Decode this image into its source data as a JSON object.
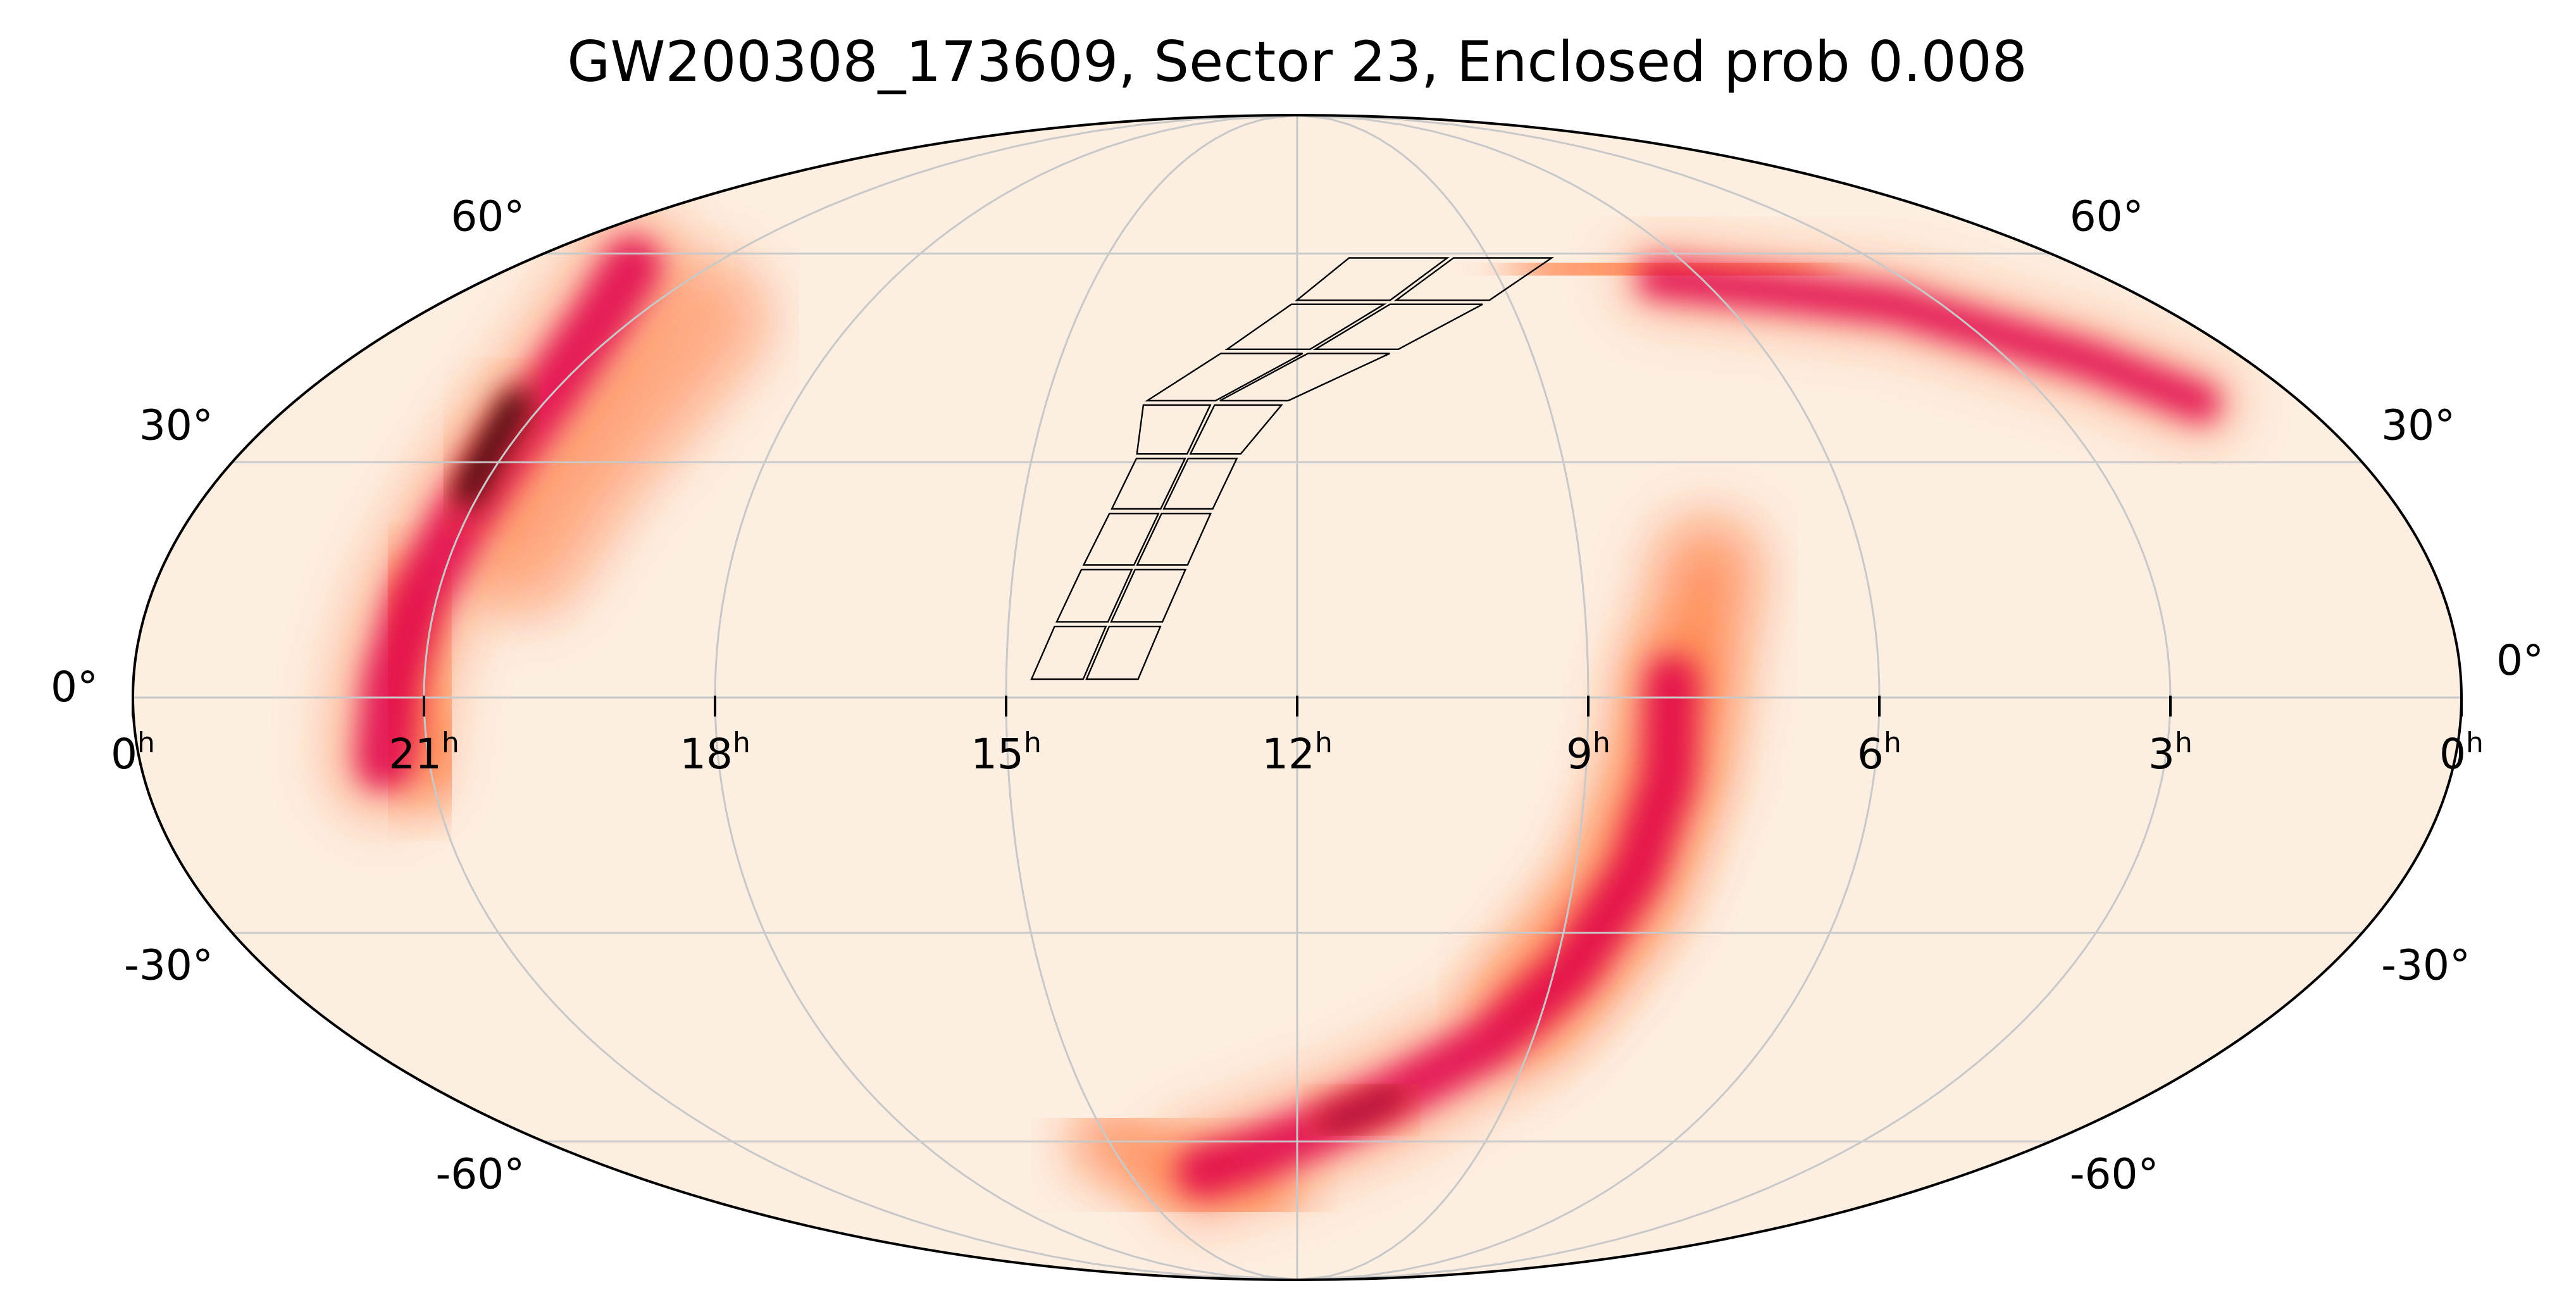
{
  "chart_data": {
    "type": "heatmap",
    "projection": "mollweide",
    "title": "GW200308_173609, Sector 23, Enclosed prob 0.008",
    "colormap": {
      "name": "RdPu-like",
      "low": "#fdeee2",
      "mid": "#ff6a2c",
      "high": "#e0004a",
      "peak": "#2a0000"
    },
    "grid": true,
    "grid_color": "#c8c8c8",
    "ra_ticks": [
      {
        "hours": "0",
        "unit": "h",
        "ra_deg": 360
      },
      {
        "hours": "21",
        "unit": "h",
        "ra_deg": 315
      },
      {
        "hours": "18",
        "unit": "h",
        "ra_deg": 270
      },
      {
        "hours": "15",
        "unit": "h",
        "ra_deg": 225
      },
      {
        "hours": "12",
        "unit": "h",
        "ra_deg": 180
      },
      {
        "hours": "9",
        "unit": "h",
        "ra_deg": 135
      },
      {
        "hours": "6",
        "unit": "h",
        "ra_deg": 90
      },
      {
        "hours": "3",
        "unit": "h",
        "ra_deg": 45
      },
      {
        "hours": "0",
        "unit": "h",
        "ra_deg": 0
      }
    ],
    "dec_ticks_left": [
      "60°",
      "30°",
      "0°",
      "-30°",
      "-60°"
    ],
    "dec_ticks_right": [
      "60°",
      "30°",
      "0°",
      "-30°",
      "-60°"
    ],
    "dec_tick_values": [
      60,
      30,
      0,
      -30,
      -60
    ],
    "probability_regions": [
      {
        "name": "north-west arc",
        "level": "high",
        "track": [
          [
            333,
            58
          ],
          [
            322,
            50
          ],
          [
            316,
            40
          ],
          [
            315,
            32
          ],
          [
            316,
            22
          ],
          [
            318,
            12
          ],
          [
            320,
            2
          ],
          [
            322,
            -8
          ]
        ],
        "width_deg": 9
      },
      {
        "name": "north-west arc outer",
        "level": "mid",
        "track": [
          [
            320,
            12
          ],
          [
            318,
            0
          ],
          [
            314,
            -8
          ]
        ],
        "width_deg": 6
      },
      {
        "name": "north-west core",
        "level": "peak",
        "track": [
          [
            320,
            38
          ],
          [
            318,
            32
          ],
          [
            317,
            26
          ]
        ],
        "width_deg": 4
      },
      {
        "name": "north-west arc faint",
        "level": "low",
        "track": [
          [
            300,
            50
          ],
          [
            298,
            40
          ],
          [
            300,
            30
          ],
          [
            303,
            18
          ]
        ],
        "width_deg": 6
      },
      {
        "name": "north-east arc",
        "level": "high",
        "track": [
          [
            100,
            56
          ],
          [
            75,
            54
          ],
          [
            55,
            52
          ],
          [
            30,
            44
          ],
          [
            18,
            38
          ]
        ],
        "width_deg": 6
      },
      {
        "name": "north-east arc faint",
        "level": "mid",
        "track": [
          [
            120,
            58
          ],
          [
            100,
            58
          ],
          [
            70,
            57
          ]
        ],
        "width_deg": 6
      },
      {
        "name": "southern arc",
        "level": "high",
        "track": [
          [
            122,
            2
          ],
          [
            122,
            -10
          ],
          [
            125,
            -22
          ],
          [
            132,
            -35
          ],
          [
            143,
            -45
          ],
          [
            160,
            -53
          ],
          [
            175,
            -58
          ],
          [
            190,
            -62
          ],
          [
            205,
            -65
          ]
        ],
        "width_deg": 8
      },
      {
        "name": "southern arc core",
        "level": "peak-light",
        "track": [
          [
            160,
            -53
          ],
          [
            165,
            -55
          ],
          [
            172,
            -57
          ]
        ],
        "width_deg": 4
      },
      {
        "name": "southern arc halo",
        "level": "mid",
        "track": [
          [
            115,
            16
          ],
          [
            118,
            8
          ],
          [
            122,
            -8
          ],
          [
            127,
            -25
          ],
          [
            138,
            -40
          ]
        ],
        "width_deg": 7
      },
      {
        "name": "southern arc lower halo",
        "level": "mid",
        "track": [
          [
            190,
            -68
          ],
          [
            210,
            -66
          ],
          [
            225,
            -60
          ]
        ],
        "width_deg": 5
      }
    ],
    "tess_sector": {
      "name": "Sector 23",
      "camera_columns": 2,
      "camera_rows": 8
    }
  }
}
